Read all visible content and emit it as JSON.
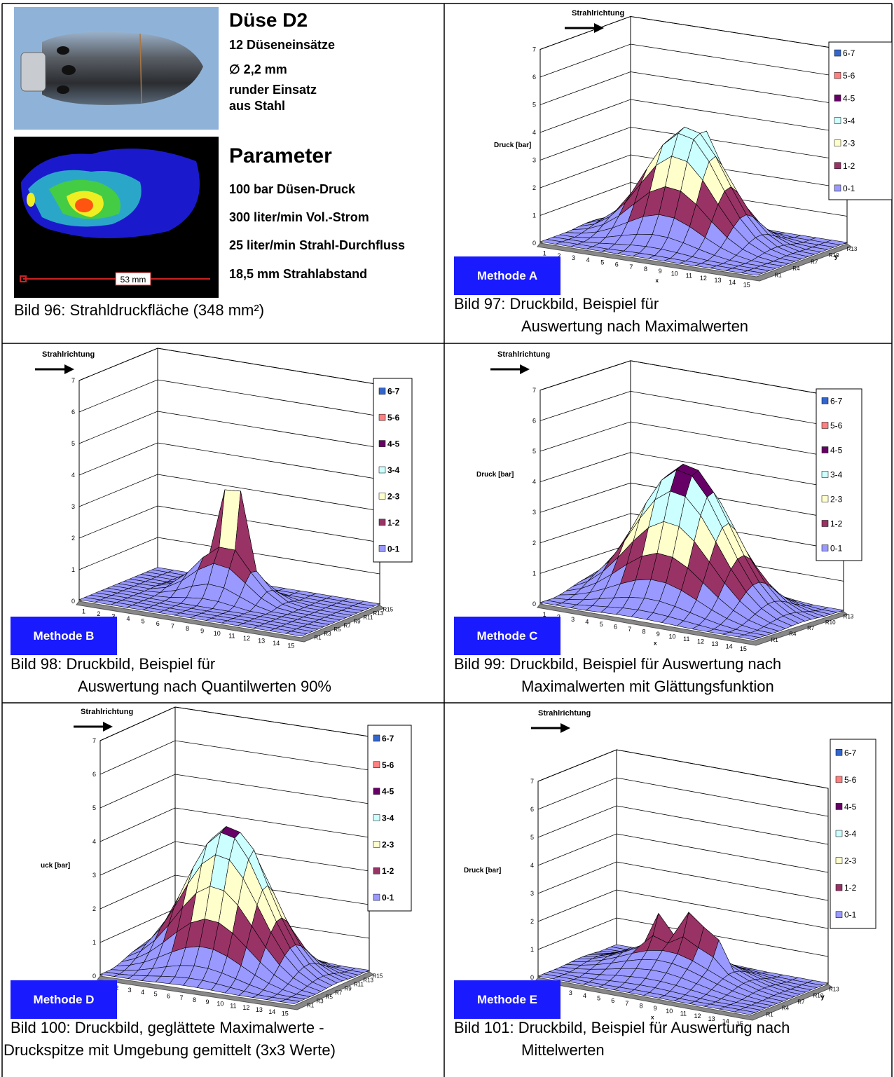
{
  "info_panel": {
    "title": "Düse D2",
    "specs": [
      "12 Düseneinsätze",
      "∅ 2,2 mm",
      "runder Einsatz",
      "aus Stahl"
    ],
    "parameter_title": "Parameter",
    "parameters": [
      "100 bar Düsen-Druck",
      "300 liter/min Vol.-Strom",
      "25 liter/min Strahl-Durchfluss",
      "18,5 mm Strahlabstand"
    ],
    "scale_label": "53 mm",
    "caption": "Bild 96: Strahldruckfläche (348 mm²)"
  },
  "charts": [
    {
      "direction_label": "Strahlrichtung",
      "z_axis_label": "Druck [bar]",
      "zticks": [
        0,
        1,
        2,
        3,
        4,
        5,
        6,
        7
      ],
      "zlim": [
        0,
        7
      ],
      "x_axis_label": "x",
      "xticks": [
        1,
        2,
        3,
        4,
        5,
        6,
        7,
        8,
        9,
        10,
        11,
        12,
        13,
        14,
        15
      ],
      "y_axis_label": "y",
      "yticks": [
        "R13",
        "R10",
        "R7",
        "R4",
        "R1"
      ],
      "legend": [
        {
          "name": "6-7",
          "color": "#3366cc"
        },
        {
          "name": "5-6",
          "color": "#ff8080"
        },
        {
          "name": "4-5",
          "color": "#660066"
        },
        {
          "name": "3-4",
          "color": "#ccffff"
        },
        {
          "name": "2-3",
          "color": "#ffffcc"
        },
        {
          "name": "1-2",
          "color": "#993366"
        },
        {
          "name": "0-1",
          "color": "#9999ff"
        }
      ],
      "method": "Methode A",
      "caption": [
        "Bild 97:  Druckbild, Beispiel für",
        "Auswertung nach Maximalwerten"
      ]
    },
    {
      "direction_label": "Strahlrichtung",
      "zticks": [
        0,
        1,
        2,
        3,
        4,
        5,
        6,
        7
      ],
      "zlim": [
        0,
        7
      ],
      "xticks": [
        1,
        2,
        3,
        4,
        5,
        6,
        7,
        8,
        9,
        10,
        11,
        12,
        13,
        14,
        15
      ],
      "yticks": [
        "R15",
        "R13",
        "R11",
        "R9",
        "R7",
        "R5",
        "R3",
        "R1"
      ],
      "legend": [
        {
          "name": "6-7",
          "color": "#3366cc"
        },
        {
          "name": "5-6",
          "color": "#ff8080"
        },
        {
          "name": "4-5",
          "color": "#660066"
        },
        {
          "name": "3-4",
          "color": "#ccffff"
        },
        {
          "name": "2-3",
          "color": "#ffffcc"
        },
        {
          "name": "1-2",
          "color": "#993366"
        },
        {
          "name": "0-1",
          "color": "#9999ff"
        }
      ],
      "method": "Methode B",
      "caption": [
        "Bild 98:  Druckbild, Beispiel für",
        "Auswertung nach Quantilwerten 90%"
      ]
    },
    {
      "direction_label": "Strahlrichtung",
      "z_axis_label": "Druck [bar]",
      "zticks": [
        0,
        1,
        2,
        3,
        4,
        5,
        6,
        7
      ],
      "zlim": [
        0,
        7
      ],
      "x_axis_label": "x",
      "xticks": [
        1,
        2,
        3,
        4,
        5,
        6,
        7,
        8,
        9,
        10,
        11,
        12,
        13,
        14,
        15
      ],
      "yticks": [
        "R13",
        "R10",
        "R7",
        "R4",
        "R1"
      ],
      "legend": [
        {
          "name": "6-7",
          "color": "#3366cc"
        },
        {
          "name": "5-6",
          "color": "#ff8080"
        },
        {
          "name": "4-5",
          "color": "#660066"
        },
        {
          "name": "3-4",
          "color": "#ccffff"
        },
        {
          "name": "2-3",
          "color": "#ffffcc"
        },
        {
          "name": "1-2",
          "color": "#993366"
        },
        {
          "name": "0-1",
          "color": "#9999ff"
        }
      ],
      "method": "Methode C",
      "caption": [
        "Bild 99:  Druckbild, Beispiel für Auswertung nach",
        "Maximalwerten mit Glättungsfunktion"
      ]
    },
    {
      "direction_label": "Strahlrichtung",
      "z_axis_label": "uck [bar]",
      "zticks": [
        0,
        1,
        2,
        3,
        4,
        5,
        6,
        7
      ],
      "zlim": [
        0,
        7
      ],
      "xticks": [
        1,
        2,
        3,
        4,
        5,
        6,
        7,
        8,
        9,
        10,
        11,
        12,
        13,
        14,
        15
      ],
      "yticks": [
        "R15",
        "R13",
        "R11",
        "R9",
        "R7",
        "R5",
        "R3",
        "R1"
      ],
      "legend": [
        {
          "name": "6-7",
          "color": "#3366cc"
        },
        {
          "name": "5-6",
          "color": "#ff8080"
        },
        {
          "name": "4-5",
          "color": "#660066"
        },
        {
          "name": "3-4",
          "color": "#ccffff"
        },
        {
          "name": "2-3",
          "color": "#ffffcc"
        },
        {
          "name": "1-2",
          "color": "#993366"
        },
        {
          "name": "0-1",
          "color": "#9999ff"
        }
      ],
      "method": "Methode D",
      "caption": [
        "Bild 100: Druckbild, geglättete Maximalwerte -",
        "Druckspitze mit Umgebung gemittelt (3x3 Werte)"
      ]
    },
    {
      "direction_label": "Strahlrichtung",
      "z_axis_label": "Druck [bar]",
      "zticks": [
        0,
        1,
        2,
        3,
        4,
        5,
        6,
        7
      ],
      "zlim": [
        0,
        7
      ],
      "x_axis_label": "x",
      "xticks": [
        1,
        2,
        3,
        4,
        5,
        6,
        7,
        8,
        9,
        10,
        11,
        12,
        13,
        14,
        15
      ],
      "y_axis_label": "y",
      "yticks": [
        "R13",
        "R10",
        "R7",
        "R4",
        "R1"
      ],
      "legend": [
        {
          "name": "6-7",
          "color": "#3366cc"
        },
        {
          "name": "5-6",
          "color": "#ff8080"
        },
        {
          "name": "4-5",
          "color": "#660066"
        },
        {
          "name": "3-4",
          "color": "#ccffff"
        },
        {
          "name": "2-3",
          "color": "#ffffcc"
        },
        {
          "name": "1-2",
          "color": "#993366"
        },
        {
          "name": "0-1",
          "color": "#9999ff"
        }
      ],
      "method": "Methode E",
      "caption": [
        "Bild 101:  Druckbild, Beispiel für Auswertung nach",
        "Mittelwerten"
      ]
    }
  ]
}
